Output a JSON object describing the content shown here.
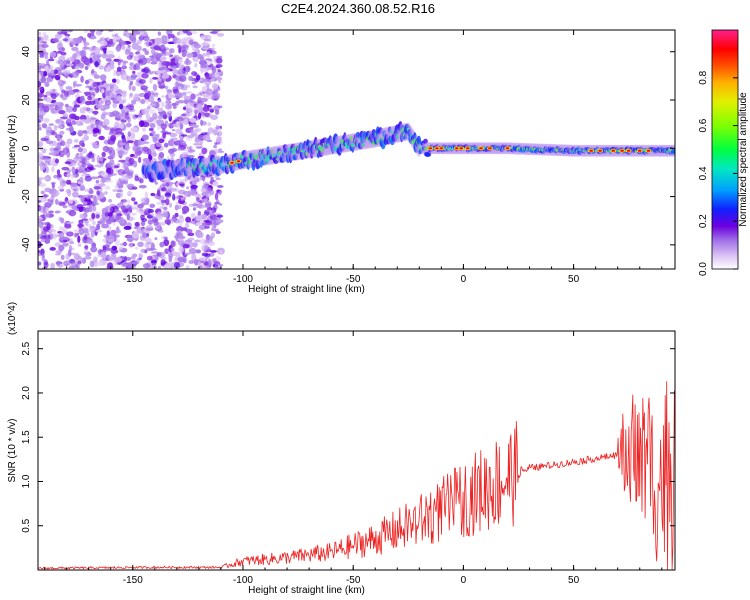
{
  "title": "C2E4.2024.360.08.52.R16",
  "chart_data": [
    {
      "type": "heatmap",
      "title": "C2E4.2024.360.08.52.R16",
      "xlabel": "Height of straight line (km)",
      "ylabel": "Frequency (Hz)",
      "xlim": [
        -193,
        96
      ],
      "ylim": [
        -50,
        49
      ],
      "x_ticks": [
        -150,
        -100,
        -50,
        0,
        50
      ],
      "y_ticks": [
        -40,
        -20,
        0,
        20,
        40
      ],
      "colorbar": {
        "label": "Normalized spectral amplitude",
        "range": [
          0.0,
          1.0
        ],
        "ticks": [
          0.0,
          0.2,
          0.4,
          0.6,
          0.8
        ],
        "colormap": "rainbow-purple-to-red-magenta"
      },
      "ridge": {
        "description": "Band of high amplitude near 0 Hz",
        "x": [
          -140,
          -110,
          -100,
          -80,
          -60,
          -40,
          -25,
          -20,
          0,
          20,
          50,
          80,
          96
        ],
        "y": [
          -9,
          -7,
          -5,
          -2,
          1,
          4,
          7,
          0,
          0,
          0,
          -1,
          -1,
          -1
        ]
      }
    },
    {
      "type": "line",
      "xlabel": "Height of straight line (km)",
      "ylabel": "SNR (10 * v/v)",
      "y_multiplier": "(x10^4)",
      "xlim": [
        -193,
        96
      ],
      "ylim": [
        0,
        2.7
      ],
      "x_ticks": [
        -150,
        -100,
        -50,
        0,
        50
      ],
      "y_ticks": [
        0.5,
        1.0,
        1.5,
        2.0,
        2.5
      ],
      "series": [
        {
          "color": "#ee2222",
          "envelope_x": [
            -193,
            -140,
            -110,
            -100,
            -80,
            -60,
            -40,
            -20,
            0,
            20,
            30,
            50,
            60,
            70,
            75,
            80,
            85,
            90,
            96
          ],
          "envelope_y": [
            0.02,
            0.03,
            0.03,
            0.1,
            0.14,
            0.2,
            0.35,
            0.55,
            0.8,
            1.05,
            1.15,
            1.22,
            1.26,
            1.3,
            1.3,
            1.2,
            1.1,
            1.0,
            1.2
          ]
        }
      ]
    }
  ]
}
